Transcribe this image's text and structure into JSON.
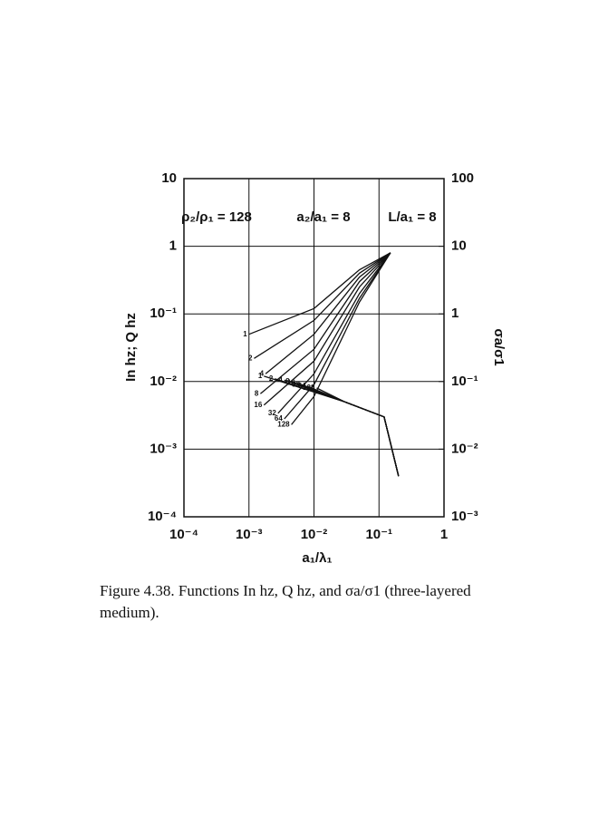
{
  "chart_data": {
    "type": "line",
    "annotations": [
      "ρ₂/ρ₁ = 128",
      "a₂/a₁ = 8",
      "L/a₁ = 8"
    ],
    "xlabel": "a₁/λ₁",
    "ylabel": "In hz; Q hz",
    "y2label": "σa/σ1",
    "log_x": true,
    "log_y": true,
    "grid": true,
    "color": "#111111",
    "xlim": [
      0.0001,
      1
    ],
    "xticks": [
      {
        "value": 0.0001,
        "label": "10⁻⁴"
      },
      {
        "value": 0.001,
        "label": "10⁻³"
      },
      {
        "value": 0.01,
        "label": "10⁻²"
      },
      {
        "value": 0.1,
        "label": "10⁻¹"
      },
      1
    ],
    "ylim": [
      0.0001,
      10
    ],
    "yticks": [
      {
        "value": 0.0001,
        "label": "10⁻⁴"
      },
      {
        "value": 0.001,
        "label": "10⁻³"
      },
      {
        "value": 0.01,
        "label": "10⁻²"
      },
      {
        "value": 0.1,
        "label": "10⁻¹"
      },
      1,
      10
    ],
    "y2lim": [
      0.001,
      100
    ],
    "y2ticks": [
      {
        "value": 0.001,
        "label": "10⁻³"
      },
      {
        "value": 0.01,
        "label": "10⁻²"
      },
      {
        "value": 0.1,
        "label": "10⁻¹"
      },
      1,
      10,
      100
    ],
    "series": [
      {
        "name": "1",
        "x": [
          0.001,
          0.01,
          0.05,
          0.15
        ],
        "values": [
          0.05,
          0.12,
          0.45,
          0.8
        ]
      },
      {
        "name": "2",
        "x": [
          0.0012,
          0.01,
          0.05,
          0.15
        ],
        "values": [
          0.022,
          0.08,
          0.4,
          0.8
        ]
      },
      {
        "name": "4",
        "x": [
          0.0018,
          0.01,
          0.05,
          0.15
        ],
        "values": [
          0.013,
          0.05,
          0.35,
          0.8
        ]
      },
      {
        "name": "8",
        "x": [
          0.0015,
          0.01,
          0.05,
          0.15
        ],
        "values": [
          0.0066,
          0.03,
          0.3,
          0.8
        ]
      },
      {
        "name": "16",
        "x": [
          0.0017,
          0.01,
          0.05,
          0.15
        ],
        "values": [
          0.0045,
          0.02,
          0.25,
          0.8
        ]
      },
      {
        "name": "32",
        "x": [
          0.0028,
          0.01,
          0.05,
          0.15
        ],
        "values": [
          0.0034,
          0.013,
          0.2,
          0.8
        ]
      },
      {
        "name": "64",
        "x": [
          0.0035,
          0.01,
          0.05,
          0.15
        ],
        "values": [
          0.0028,
          0.009,
          0.17,
          0.8
        ]
      },
      {
        "name": "128",
        "x": [
          0.0045,
          0.01,
          0.05,
          0.15
        ],
        "values": [
          0.0023,
          0.006,
          0.15,
          0.8
        ]
      },
      {
        "name": "1",
        "x": [
          0.0017,
          0.03,
          0.12,
          0.2
        ],
        "values": [
          0.012,
          0.005,
          0.003,
          0.0004
        ]
      },
      {
        "name": "2",
        "x": [
          0.0025,
          0.03,
          0.12,
          0.2
        ],
        "values": [
          0.011,
          0.005,
          0.003,
          0.0004
        ]
      },
      {
        "name": "4",
        "x": [
          0.0035,
          0.03,
          0.12,
          0.2
        ],
        "values": [
          0.0105,
          0.005,
          0.003,
          0.0004
        ]
      },
      {
        "name": "8",
        "x": [
          0.0045,
          0.03,
          0.12,
          0.2
        ],
        "values": [
          0.01,
          0.005,
          0.003,
          0.0004
        ]
      },
      {
        "name": "16",
        "x": [
          0.0055,
          0.03,
          0.12,
          0.2
        ],
        "values": [
          0.0095,
          0.005,
          0.003,
          0.0004
        ]
      },
      {
        "name": "32",
        "x": [
          0.0065,
          0.03,
          0.12,
          0.2
        ],
        "values": [
          0.009,
          0.005,
          0.003,
          0.0004
        ]
      },
      {
        "name": "64",
        "x": [
          0.008,
          0.03,
          0.12,
          0.2
        ],
        "values": [
          0.0085,
          0.005,
          0.003,
          0.0004
        ]
      },
      {
        "name": "128",
        "x": [
          0.011,
          0.03,
          0.12,
          0.2
        ],
        "values": [
          0.008,
          0.005,
          0.003,
          0.0004
        ]
      }
    ]
  },
  "caption": "Figure 4.38.   Functions In hz, Q hz, and σa/σ1 (three-layered medium)."
}
